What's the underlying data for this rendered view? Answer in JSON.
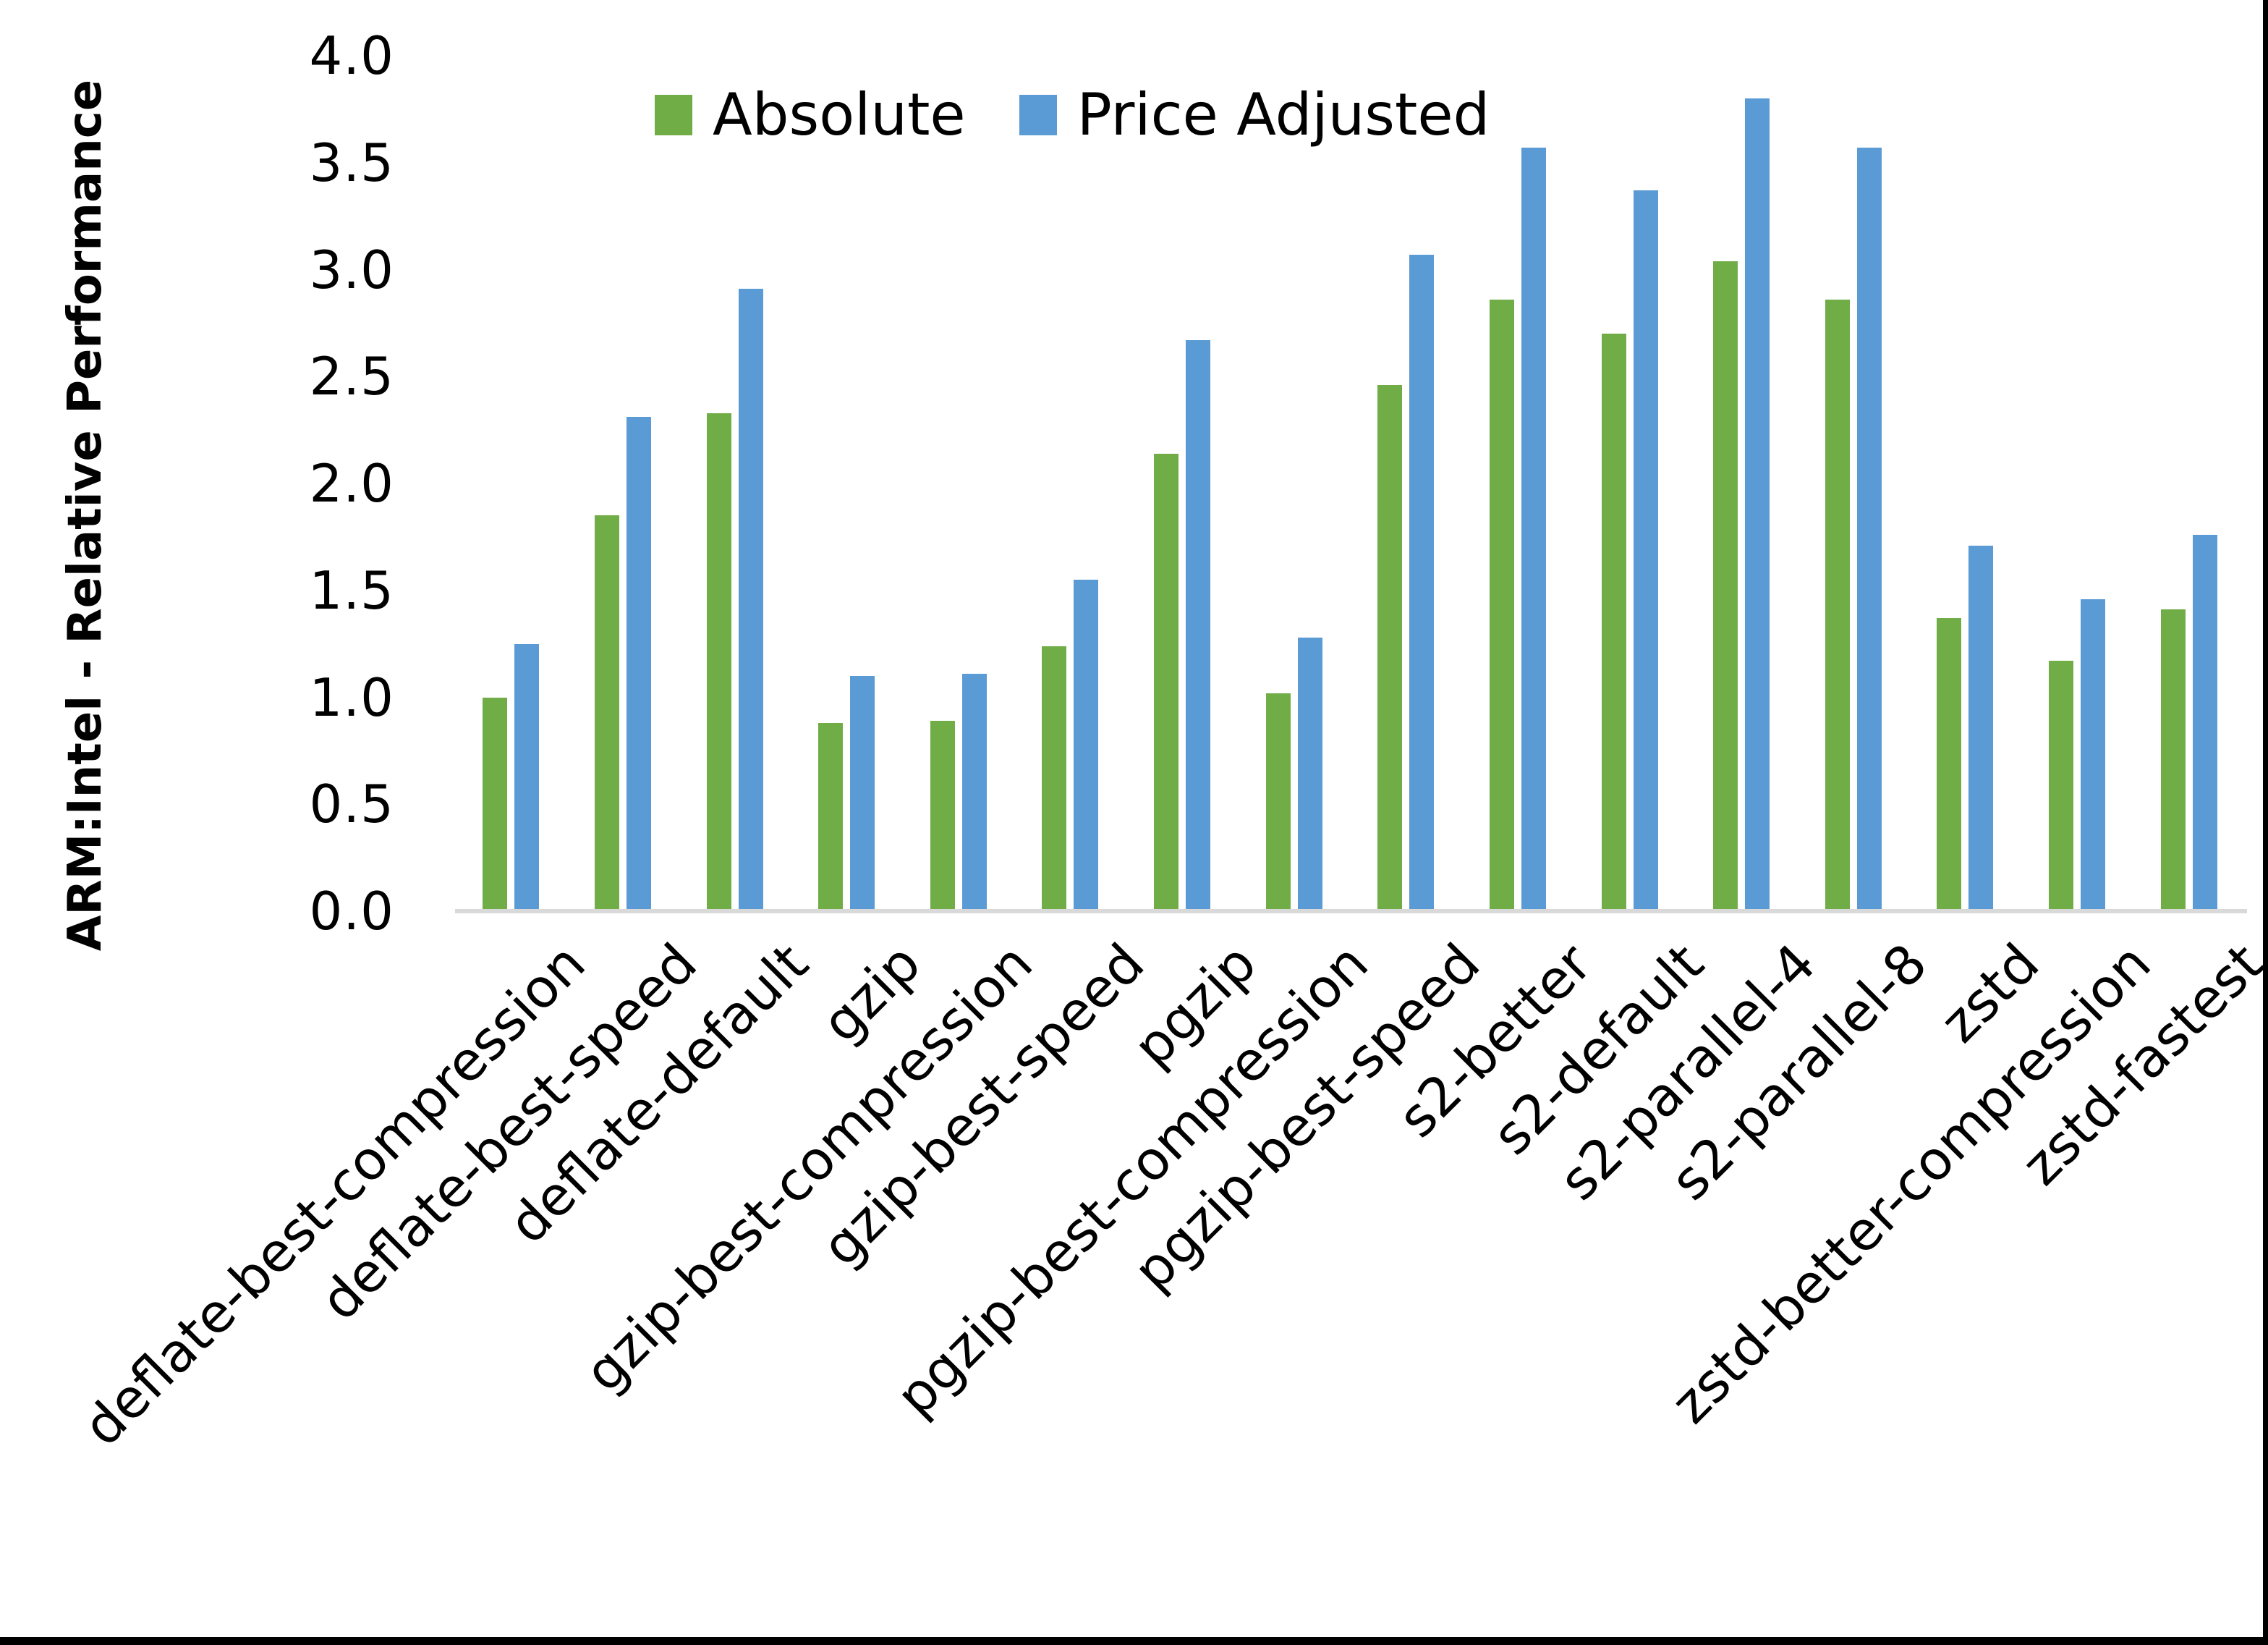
{
  "chart_data": {
    "type": "bar",
    "title": "",
    "ylabel": "ARM:Intel - Relative Performance",
    "xlabel": "",
    "ylim": [
      0,
      4.0
    ],
    "ytick_step": 0.5,
    "ytick_decimals": 1,
    "grid": false,
    "legend_position": "top-center-inside",
    "background": "#FFFFFF",
    "text_color": "#000000",
    "baseline_color": "#D9D9D9",
    "frame_border_color": "#000000",
    "categories": [
      "deflate-best-compression",
      "deflate-best-speed",
      "deflate-default",
      "gzip",
      "gzip-best-compression",
      "gzip-best-speed",
      "pgzip",
      "pgzip-best-compression",
      "pgzip-best-speed",
      "s2-better",
      "s2-default",
      "s2-parallel-4",
      "s2-parallel-8",
      "zstd",
      "zstd-better-compression",
      "zstd-fastest"
    ],
    "series": [
      {
        "name": "Absolute",
        "color": "#70AD47",
        "values": [
          1.0,
          1.85,
          2.33,
          0.88,
          0.89,
          1.24,
          2.14,
          1.02,
          2.46,
          2.86,
          2.7,
          3.04,
          2.86,
          1.37,
          1.17,
          1.41
        ]
      },
      {
        "name": "Price Adjusted",
        "color": "#5B9BD5",
        "values": [
          1.25,
          2.31,
          2.91,
          1.1,
          1.11,
          1.55,
          2.67,
          1.28,
          3.07,
          3.57,
          3.37,
          3.8,
          3.57,
          1.71,
          1.46,
          1.76
        ]
      }
    ]
  }
}
